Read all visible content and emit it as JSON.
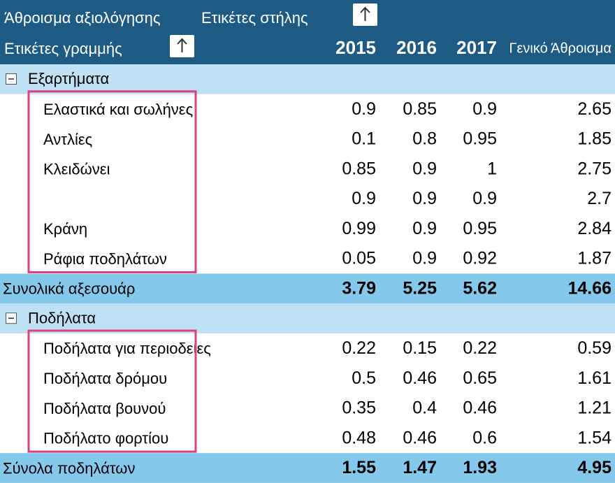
{
  "header": {
    "values_label": "Άθροισμα αξιολόγησης",
    "column_labels": "Ετικέτες στήλης",
    "row_labels": "Ετικέτες γραμμής",
    "columns": [
      "2015",
      "2016",
      "2017",
      "Γενικό Άθροισμα"
    ]
  },
  "groups": [
    {
      "name": "Εξαρτήματα",
      "rows": [
        {
          "label": "Ελαστικά και σωλήνες",
          "values": [
            0.9,
            0.85,
            0.9,
            2.65
          ]
        },
        {
          "label": "Αντλίες",
          "values": [
            0.1,
            0.8,
            0.95,
            1.85
          ]
        },
        {
          "label": "Κλειδώνει",
          "values": [
            0.85,
            0.9,
            1,
            2.75
          ]
        },
        {
          "label": null,
          "values": [
            0.9,
            0.9,
            0.9,
            2.7
          ]
        },
        {
          "label": "Κράνη",
          "values": [
            0.99,
            0.9,
            0.95,
            2.84
          ]
        },
        {
          "label": "Ράφια ποδηλάτων",
          "values": [
            0.05,
            0.9,
            0.92,
            1.87
          ]
        }
      ],
      "total": {
        "label": "Συνολικά αξεσουάρ",
        "values": [
          3.79,
          5.25,
          5.62,
          14.66
        ]
      }
    },
    {
      "name": "Ποδήλατα",
      "rows": [
        {
          "label": "Ποδήλατα για περιοδείες",
          "values": [
            0.22,
            0.15,
            0.22,
            0.59
          ]
        },
        {
          "label": "Ποδήλατα δρόμου",
          "values": [
            0.5,
            0.46,
            0.65,
            1.61
          ]
        },
        {
          "label": "Ποδήλατα βουνού",
          "values": [
            0.35,
            0.4,
            0.46,
            1.21
          ]
        },
        {
          "label": "Ποδήλατο φορτίου",
          "values": [
            0.48,
            0.46,
            0.6,
            1.54
          ]
        }
      ],
      "total": {
        "label": "Σύνολα ποδηλάτων",
        "values": [
          1.55,
          1.47,
          1.93,
          4.95
        ]
      }
    }
  ]
}
